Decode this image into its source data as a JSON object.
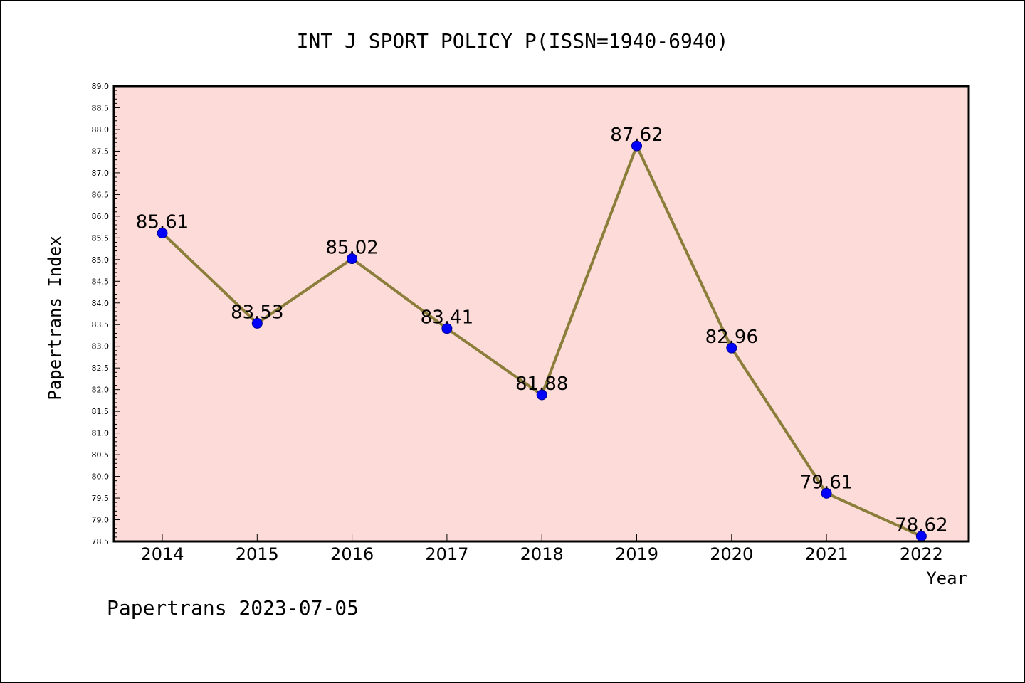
{
  "chart_data": {
    "type": "line",
    "title": "INT J SPORT POLICY P(ISSN=1940-6940)",
    "xlabel": "Year",
    "ylabel": "Papertrans Index",
    "categories": [
      "2014",
      "2015",
      "2016",
      "2017",
      "2018",
      "2019",
      "2020",
      "2021",
      "2022"
    ],
    "series": [
      {
        "values": [
          85.61,
          83.53,
          85.02,
          83.41,
          81.88,
          87.62,
          82.96,
          79.61,
          78.62
        ],
        "labels": [
          "85.61",
          "83.53",
          "85.02",
          "83.41",
          "81.88",
          "87.62",
          "82.96",
          "79.61",
          "78.62"
        ]
      }
    ],
    "ylim": [
      78.5,
      89.0
    ],
    "y_ticks": [
      "78.5",
      "79.0",
      "79.5",
      "80.0",
      "80.5",
      "81.0",
      "81.5",
      "82.0",
      "82.5",
      "83.0",
      "83.5",
      "84.0",
      "84.5",
      "85.0",
      "85.5",
      "86.0",
      "86.5",
      "87.0",
      "87.5",
      "88.0",
      "88.5",
      "89.0"
    ],
    "grid": false,
    "colors": {
      "plot_background": "#fddbd8",
      "line": "#8b7d3a",
      "marker": "#0000ff"
    }
  },
  "footer": {
    "text": "Papertrans 2023-07-05"
  }
}
